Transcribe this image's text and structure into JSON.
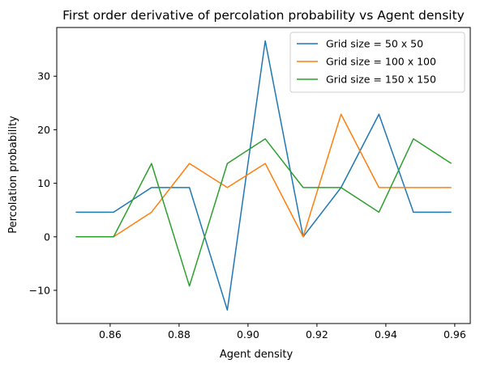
{
  "chart_data": {
    "type": "line",
    "title": "First order derivative of percolation probability vs Agent density",
    "xlabel": "Agent density",
    "ylabel": "Percolation probability",
    "xlim": [
      0.8445,
      0.9645
    ],
    "ylim": [
      -16.2,
      39.1
    ],
    "xticks": [
      0.86,
      0.88,
      0.9,
      0.92,
      0.94,
      0.96
    ],
    "xtick_labels": [
      "0.86",
      "0.88",
      "0.90",
      "0.92",
      "0.94",
      "0.96"
    ],
    "yticks": [
      -10,
      0,
      10,
      20,
      30
    ],
    "ytick_labels": [
      "−10",
      "0",
      "10",
      "20",
      "30"
    ],
    "grid": false,
    "legend_position": "top-right",
    "x": [
      0.85,
      0.861,
      0.872,
      0.883,
      0.894,
      0.905,
      0.916,
      0.927,
      0.938,
      0.948,
      0.959
    ],
    "series": [
      {
        "name": "Grid size = 50 x 50",
        "color": "#1f77b4",
        "values": [
          4.6,
          4.6,
          9.2,
          9.2,
          -13.7,
          36.6,
          0.0,
          9.2,
          22.9,
          4.6,
          4.6
        ]
      },
      {
        "name": "Grid size = 100 x 100",
        "color": "#ff7f0e",
        "values": [
          0.0,
          0.0,
          4.6,
          13.7,
          9.2,
          13.7,
          0.0,
          22.9,
          9.2,
          9.2,
          9.2
        ]
      },
      {
        "name": "Grid size = 150 x 150",
        "color": "#2ca02c",
        "values": [
          0.0,
          0.0,
          13.7,
          -9.2,
          13.7,
          18.3,
          9.2,
          9.2,
          4.6,
          18.3,
          13.7
        ]
      }
    ]
  }
}
